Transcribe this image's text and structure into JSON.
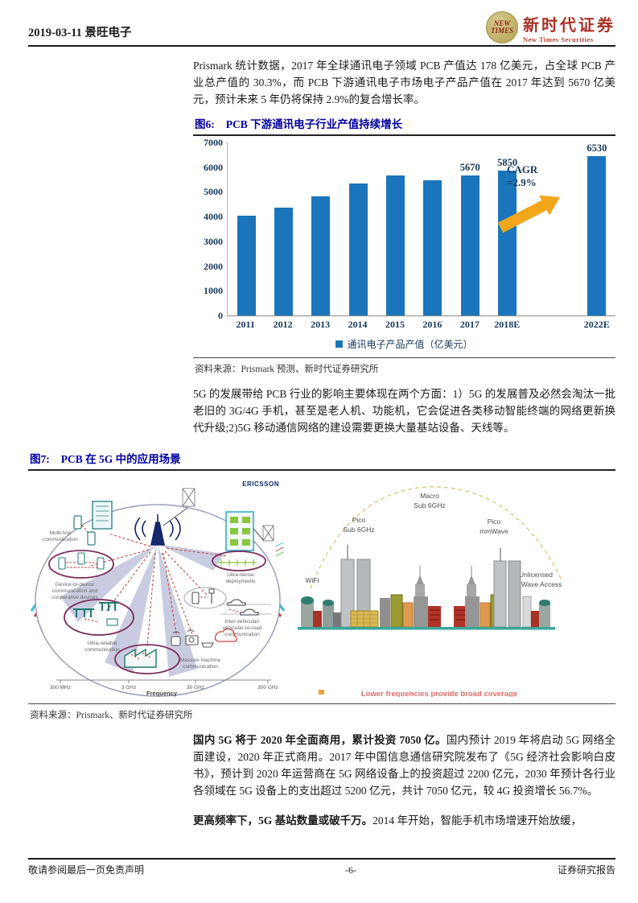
{
  "header": {
    "date_title": "2019-03-11 景旺电子",
    "logo": {
      "badge_top": "NEW",
      "badge_bottom": "TIMES",
      "name_cn": "新时代证券",
      "name_en": "New Times Securities"
    }
  },
  "paragraphs": {
    "p1": "Prismark 统计数据，2017 年全球通讯电子领域 PCB 产值达 178 亿美元，占全球 PCB 产业总产值的 30.3%，而 PCB 下游通讯电子市场电子产品产值在 2017 年达到 5670 亿美元，预计未来 5 年仍将保持 2.9%的复合增长率。",
    "p2": "5G 的发展带给 PCB 行业的影响主要体现在两个方面：1）5G 的发展普及必然会淘汰一批老旧的 3G/4G 手机，甚至是老人机、功能机，它会促进各类移动智能终端的网络更新换代升级;2)5G 移动通信网络的建设需要更换大量基站设备、天线等。",
    "p3_bold": "国内 5G 将于 2020 年全面商用，累计投资 7050 亿。",
    "p3_rest": "国内预计 2019 年将启动 5G 网络全面建设，2020 年正式商用。2017 年中国信息通信研究院发布了《5G 经济社会影响白皮书》，预计到 2020 年运营商在 5G 网络设备上的投资超过 2200 亿元，2030 年预计各行业各领域在 5G 设备上的支出超过 5200 亿元，共计 7050 亿元，较 4G 投资增长 56.7%。",
    "p4_bold": "更高频率下，5G 基站数量或破千万。",
    "p4_rest": "2014 年开始，智能手机市场增速开始放缓，"
  },
  "figure6": {
    "label": "图6:",
    "title": "PCB 下游通讯电子行业产值持续增长",
    "source": "资料来源：Prismark 预测、新时代证券研究所"
  },
  "chart_data": {
    "type": "bar",
    "title": "PCB 下游通讯电子行业产值持续增长",
    "categories": [
      "2011",
      "2012",
      "2013",
      "2014",
      "2015",
      "2016",
      "2017",
      "2018E",
      "2022E"
    ],
    "values": [
      4050,
      4350,
      4820,
      5350,
      5650,
      5480,
      5670,
      5850,
      6530
    ],
    "show_value_labels": [
      false,
      false,
      false,
      false,
      false,
      false,
      true,
      true,
      true
    ],
    "gap_before_index": 8,
    "gap_flex": 1.4,
    "annotation": {
      "line1": "CAGR",
      "line2": "=2.9%"
    },
    "legend": [
      "通讯电子产品产值（亿美元）"
    ],
    "xlabel": "",
    "ylabel": "",
    "ylim": [
      0,
      7000
    ],
    "yticks": [
      7000,
      6000,
      5000,
      4000,
      3000,
      2000,
      1000,
      0
    ],
    "grid": false,
    "legend_position": "bottom",
    "bar_color": "#1b75bc",
    "arrow_color": "#f2a71b"
  },
  "figure7": {
    "label": "图7:",
    "title": "PCB 在 5G 中的应用场景",
    "source": "资料来源：Prismark、新时代证券研究所",
    "left_image": {
      "brand": "ERICSSON",
      "labels": {
        "multi_hop": [
          "Multi-hop",
          "communication"
        ],
        "d2d": [
          "Device-to-device",
          "communication and",
          "cooperative devices"
        ],
        "ultra_reliable": [
          "Ultra-reliable",
          "communication"
        ],
        "ultra_dense": [
          "Ultra-dense",
          "deployments"
        ],
        "inter_vehicular": [
          "Inter-vehicular/",
          "vehicular-to-road",
          "communication"
        ],
        "massive_machine": [
          "Massive machine",
          "communication"
        ]
      },
      "freq_axis": {
        "ticks": [
          "300 MHz",
          "3 GHz",
          "30 GHz",
          "300 GHz"
        ],
        "label": "Frequency"
      }
    },
    "right_image": {
      "labels": {
        "wifi": "WiFi",
        "pico_sub6": [
          "Pico",
          "Sub 6GHz"
        ],
        "macro_sub6": [
          "Macro",
          "Sub 6GHz"
        ],
        "pico_mmwave": [
          "Pico",
          "mmWave"
        ],
        "unlicensed": [
          "Unlicensed",
          "mmWave Access"
        ]
      },
      "caption": "Lower frequencies provide broad coverage"
    }
  },
  "footer": {
    "left": "敬请参阅最后一页免责声明",
    "center": "-6-",
    "right": "证券研究报告"
  }
}
